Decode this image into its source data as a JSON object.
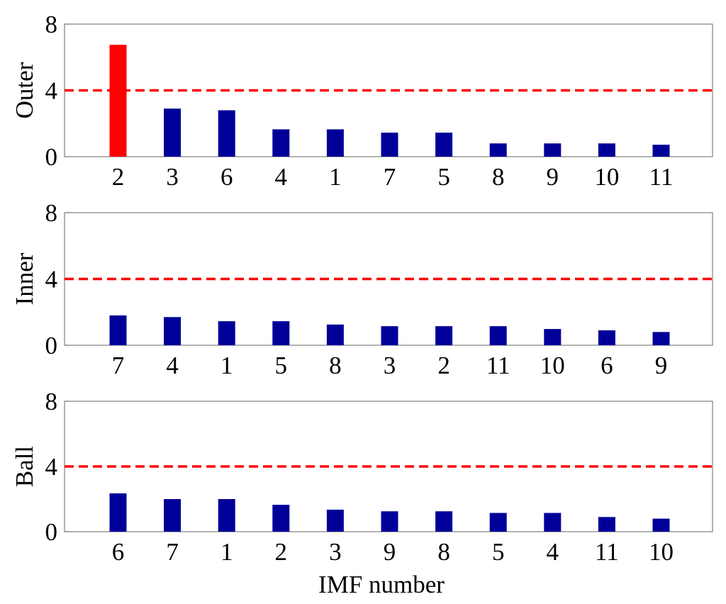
{
  "colors": {
    "bar": "#000099",
    "highlight_bar": "#ff0000",
    "threshold": "#ff0000"
  },
  "chart_data": {
    "type": "bar",
    "xlabel": "IMF number",
    "ylim": [
      0,
      8
    ],
    "yticks": [
      "0",
      "4",
      "8"
    ],
    "threshold": 4,
    "panels": [
      {
        "ylabel": "Outer",
        "categories": [
          "2",
          "3",
          "6",
          "4",
          "1",
          "7",
          "5",
          "8",
          "9",
          "10",
          "11"
        ],
        "values": [
          6.75,
          2.9,
          2.8,
          1.65,
          1.65,
          1.45,
          1.45,
          0.8,
          0.8,
          0.8,
          0.72
        ],
        "highlight_index": 0
      },
      {
        "ylabel": "Inner",
        "categories": [
          "7",
          "4",
          "1",
          "5",
          "8",
          "3",
          "2",
          "11",
          "10",
          "6",
          "9"
        ],
        "values": [
          1.8,
          1.7,
          1.45,
          1.45,
          1.25,
          1.15,
          1.15,
          1.15,
          0.98,
          0.9,
          0.8
        ],
        "highlight_index": -1
      },
      {
        "ylabel": "Ball",
        "categories": [
          "6",
          "7",
          "1",
          "2",
          "3",
          "9",
          "8",
          "5",
          "4",
          "11",
          "10"
        ],
        "values": [
          2.35,
          2.0,
          2.0,
          1.65,
          1.35,
          1.25,
          1.25,
          1.15,
          1.15,
          0.9,
          0.8
        ],
        "highlight_index": -1
      }
    ]
  }
}
